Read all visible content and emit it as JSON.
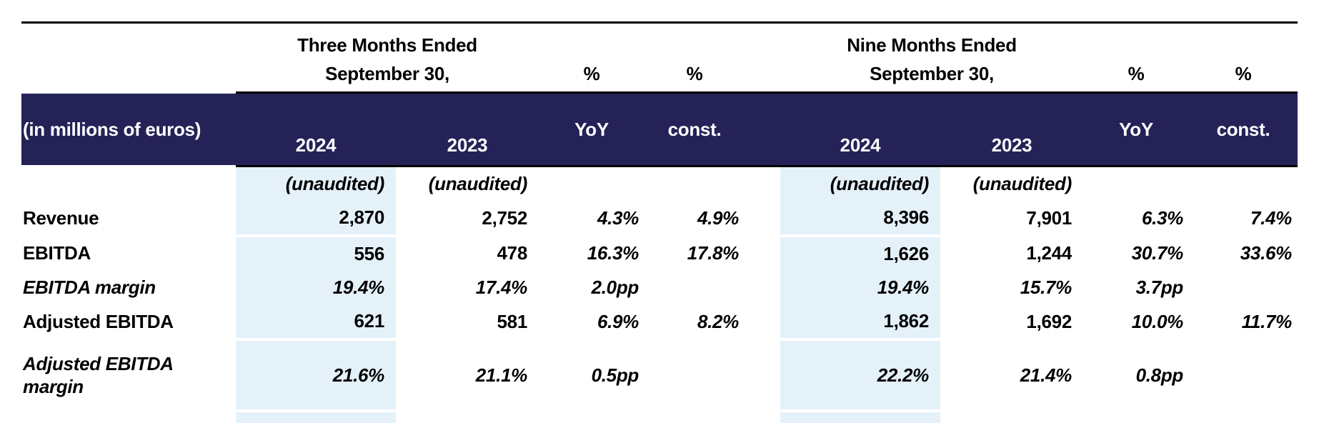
{
  "table": {
    "unit_label": "(in millions of euros)",
    "unaudited_note": "(unaudited)",
    "period_groups": [
      {
        "line1": "Three Months Ended",
        "line2": "September 30,"
      },
      {
        "line1": "Nine Months Ended",
        "line2": "September 30,"
      }
    ],
    "percent_symbol": "%",
    "columns": {
      "year_2024": "2024",
      "year_2023": "2023",
      "yoy": "YoY",
      "const": "const."
    },
    "colors": {
      "header_navy": "#242257",
      "highlight_blue": "#E4F1F9"
    },
    "rows": [
      {
        "label": "Revenue",
        "values": [
          "2,870",
          "2,752",
          "4.3%",
          "4.9%",
          "8,396",
          "7,901",
          "6.3%",
          "7.4%"
        ]
      },
      {
        "label": "EBITDA",
        "values": [
          "556",
          "478",
          "16.3%",
          "17.8%",
          "1,626",
          "1,244",
          "30.7%",
          "33.6%"
        ]
      },
      {
        "label": "EBITDA margin",
        "values": [
          "19.4%",
          "17.4%",
          "2.0pp",
          "",
          "19.4%",
          "15.7%",
          "3.7pp",
          ""
        ]
      },
      {
        "label": "Adjusted EBITDA",
        "values": [
          "621",
          "581",
          "6.9%",
          "8.2%",
          "1,862",
          "1,692",
          "10.0%",
          "11.7%"
        ]
      },
      {
        "label": "Adjusted EBITDA margin",
        "values": [
          "21.6%",
          "21.1%",
          "0.5pp",
          "",
          "22.2%",
          "21.4%",
          "0.8pp",
          ""
        ]
      }
    ]
  }
}
